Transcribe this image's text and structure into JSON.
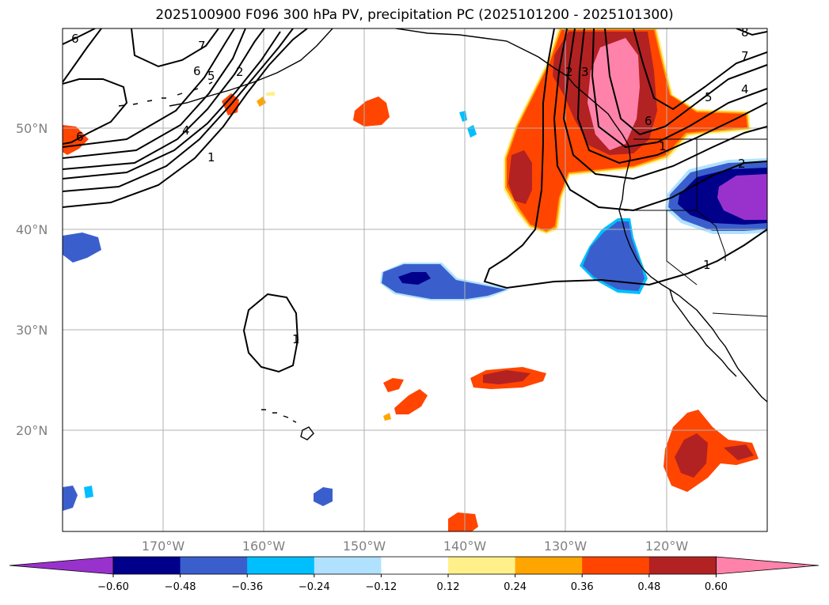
{
  "title": "2025100900 F096 300 hPa PV, precipitation PC (2025101200 - 2025101300)",
  "colors": {
    "ocean": "#ffffff",
    "coast": "#000000",
    "grid": "#b0b0b0",
    "contour": "#000000",
    "tick_label": "#808080"
  },
  "lat_labels": [
    "50°N",
    "40°N",
    "30°N",
    "20°N"
  ],
  "lon_labels": [
    "170°W",
    "160°W",
    "150°W",
    "140°W",
    "130°W",
    "120°W"
  ],
  "colorbar": {
    "colors": [
      "#9932cc",
      "#00008b",
      "#3a5fcd",
      "#00bfff",
      "#b0e2ff",
      "#ffffff",
      "#fff08a",
      "#ffa500",
      "#ff4500",
      "#b22222",
      "#ff82ab"
    ],
    "labels": [
      "−0.60",
      "−0.48",
      "−0.36",
      "−0.24",
      "−0.12",
      "0.12",
      "0.24",
      "0.36",
      "0.48",
      "0.60"
    ]
  },
  "pv_contour_labels": [
    "6",
    "7",
    "6",
    "5",
    "2",
    "4",
    "1",
    "6",
    "1",
    "2",
    "3",
    "6",
    "7",
    "5",
    "4",
    "1",
    "2",
    "1",
    "8"
  ]
}
